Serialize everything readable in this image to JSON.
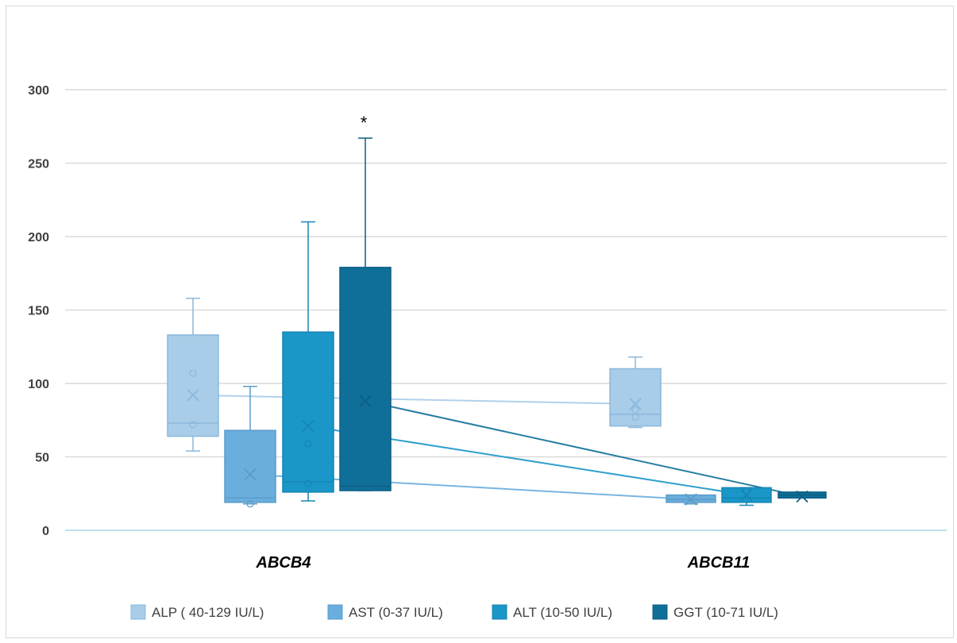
{
  "chart_data": {
    "type": "box",
    "categories": [
      "ABCB4",
      "ABCB11"
    ],
    "ylim": [
      0,
      300
    ],
    "yticks": [
      0,
      50,
      100,
      150,
      200,
      250,
      300
    ],
    "grid": true,
    "legend_position": "bottom",
    "annotation": "*",
    "series": [
      {
        "name": "ALP ( 40-129 IU/L)",
        "color": "#a9cce8",
        "boxes": [
          {
            "min": 54,
            "q1": 64,
            "median": 73,
            "q3": 133,
            "max": 158,
            "mean": 92,
            "points": [
              107,
              72
            ]
          },
          {
            "min": 70,
            "q1": 71,
            "median": 79,
            "q3": 110,
            "max": 118,
            "mean": 86,
            "points": [
              82,
              77
            ]
          }
        ]
      },
      {
        "name": "AST (0-37 IU/L)",
        "color": "#6aaede",
        "boxes": [
          {
            "min": 18,
            "q1": 19,
            "median": 22,
            "q3": 68,
            "max": 98,
            "mean": 38,
            "points": [
              18
            ]
          },
          {
            "min": 18,
            "q1": 19,
            "median": 21,
            "q3": 24,
            "max": 24,
            "mean": 21,
            "points": []
          }
        ]
      },
      {
        "name": "ALT (10-50 IU/L)",
        "color": "#1a96c8",
        "boxes": [
          {
            "min": 20,
            "q1": 26,
            "median": 33,
            "q3": 135,
            "max": 210,
            "mean": 71,
            "points": [
              59,
              32
            ]
          },
          {
            "min": 17,
            "q1": 19,
            "median": 22,
            "q3": 29,
            "max": 29,
            "mean": 24,
            "points": [
              27
            ]
          }
        ]
      },
      {
        "name": "GGT (10-71 IU/L)",
        "color": "#0f6f98",
        "boxes": [
          {
            "min": 27,
            "q1": 27,
            "median": 30,
            "q3": 179,
            "max": 267,
            "mean": 88,
            "points": []
          },
          {
            "min": 22,
            "q1": 22,
            "median": 24,
            "q3": 26,
            "max": 26,
            "mean": 23,
            "points": []
          }
        ]
      }
    ]
  }
}
